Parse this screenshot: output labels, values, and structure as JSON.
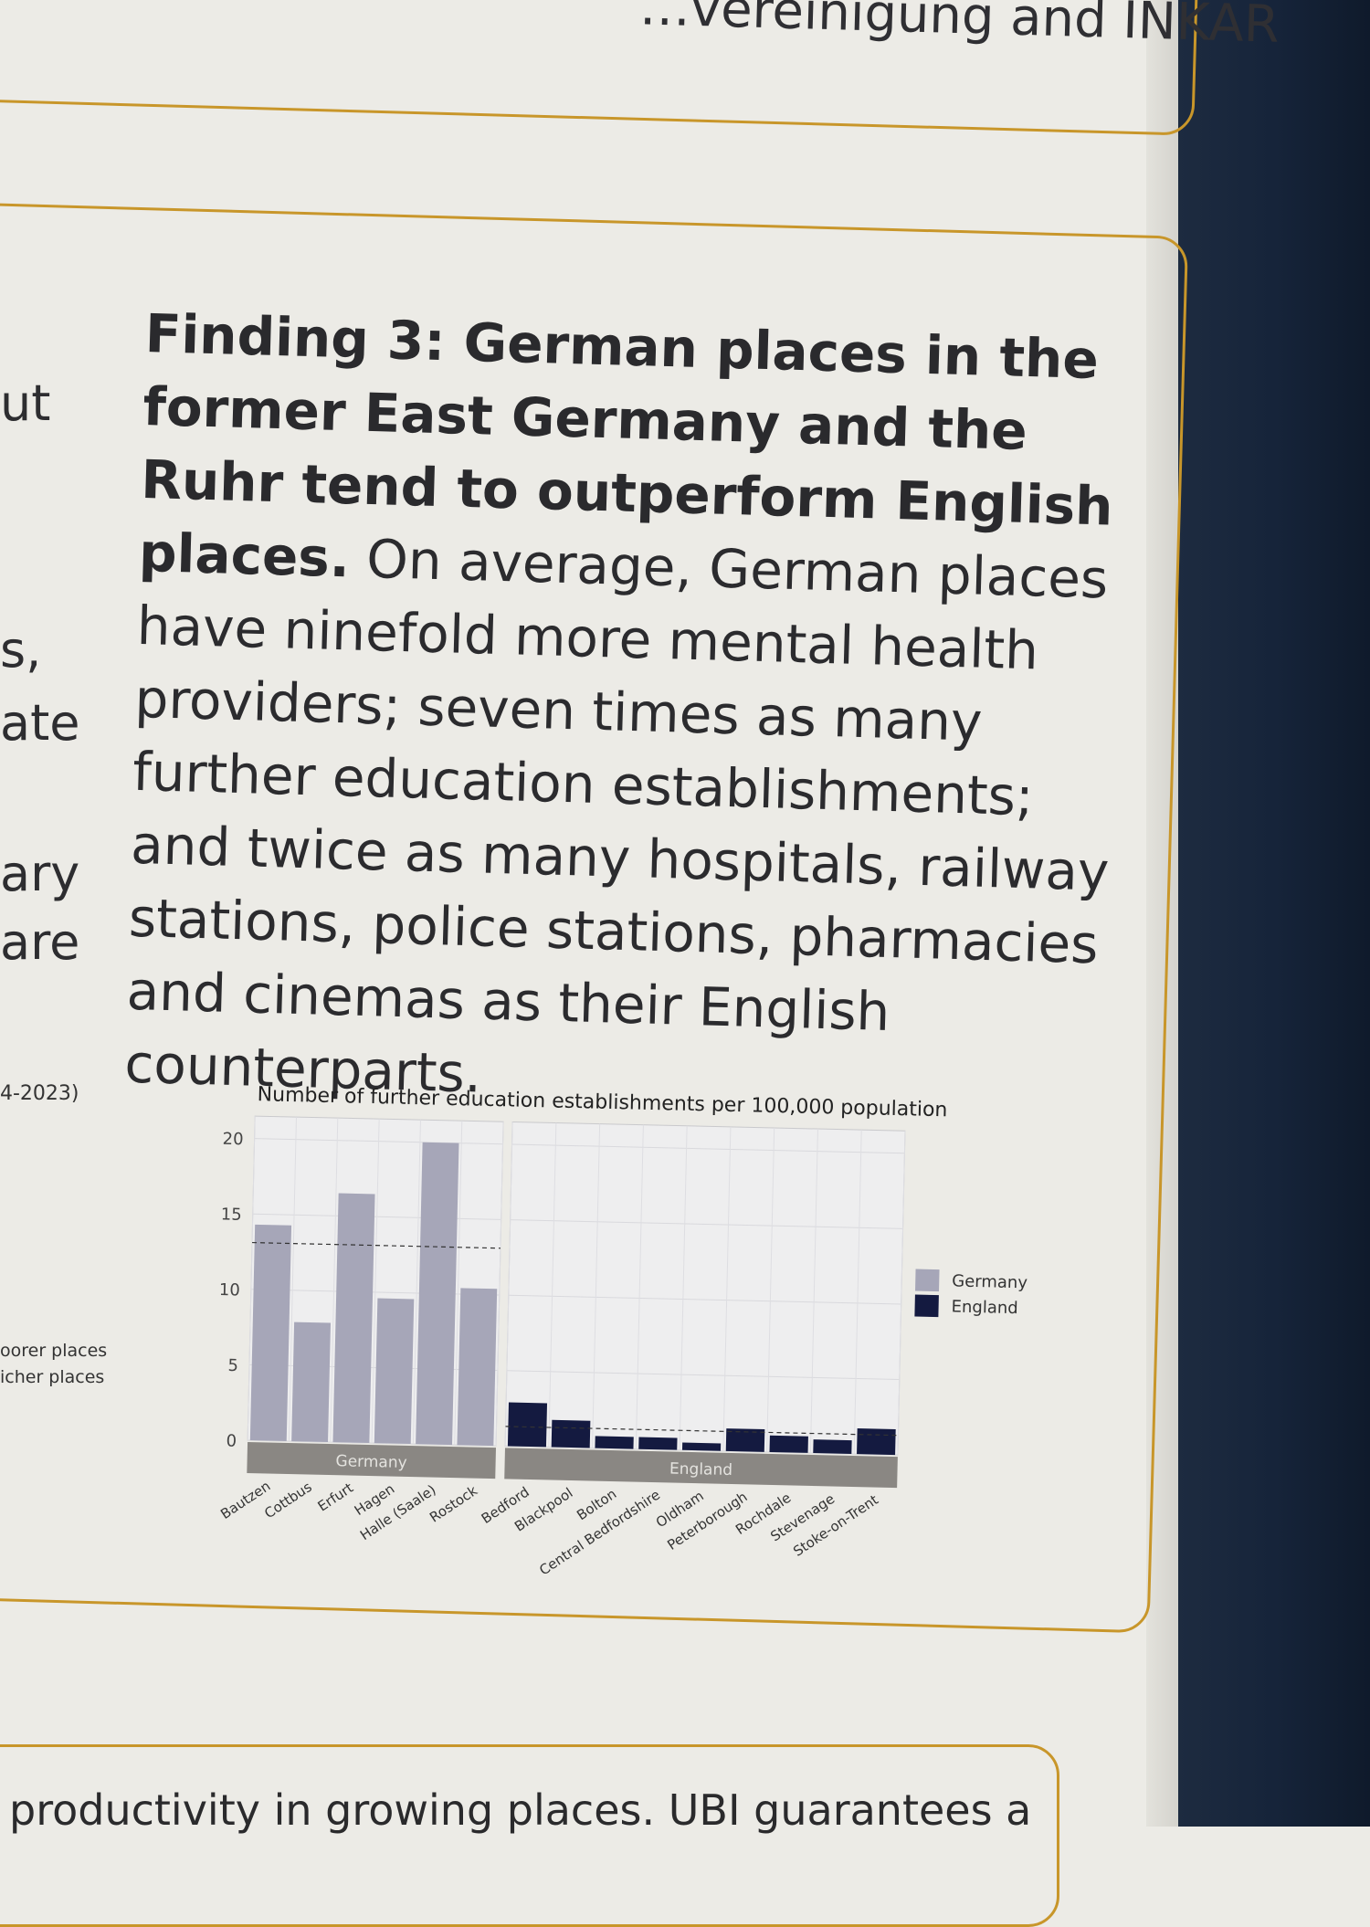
{
  "header": {
    "top_text": "…vereinigung and INKAR"
  },
  "left_column_fragments": [
    "ut",
    "s,",
    "ate",
    "ary",
    "are",
    "4-2023)",
    "oorer places",
    "icher places"
  ],
  "finding": {
    "bold": "Finding 3: German places in the former East Germany and the Ruhr tend to outperform English places.",
    "body": " On average, German places have ninefold more mental health providers; seven times as many further education establishments; and twice as many hospitals, railway stations, police stations, pharmacies and cinemas as their English counterparts."
  },
  "bottom": {
    "text": "productivity in growing places. UBI guarantees a"
  },
  "chart_data": {
    "type": "bar",
    "title": "Number of further education establishments per 100,000 population",
    "ylim": [
      0,
      21
    ],
    "yticks": [
      0,
      5,
      10,
      15,
      20
    ],
    "grid": true,
    "legend_placement": "right",
    "panels": [
      {
        "name": "Germany",
        "color": "#a6a6b8",
        "categories": [
          "Bautzen",
          "Cottbus",
          "Erfurt",
          "Hagen",
          "Halle (Saale)",
          "Rostock"
        ],
        "values": [
          14.3,
          7.9,
          16.5,
          9.6,
          20.0,
          10.4
        ],
        "mean": 13.1
      },
      {
        "name": "England",
        "color": "#141a40",
        "categories": [
          "Bedford",
          "Blackpool",
          "Bolton",
          "Central Bedfordshire",
          "Oldham",
          "Peterborough",
          "Rochdale",
          "Stevenage",
          "Stoke-on-Trent"
        ],
        "values": [
          2.9,
          1.8,
          0.8,
          0.8,
          0.5,
          1.5,
          1.1,
          0.9,
          1.7
        ],
        "mean": 1.3
      }
    ],
    "legend": [
      {
        "label": "Germany",
        "color": "#a6a6b8"
      },
      {
        "label": "England",
        "color": "#141a40"
      }
    ],
    "strip_color": "#8a8783"
  }
}
